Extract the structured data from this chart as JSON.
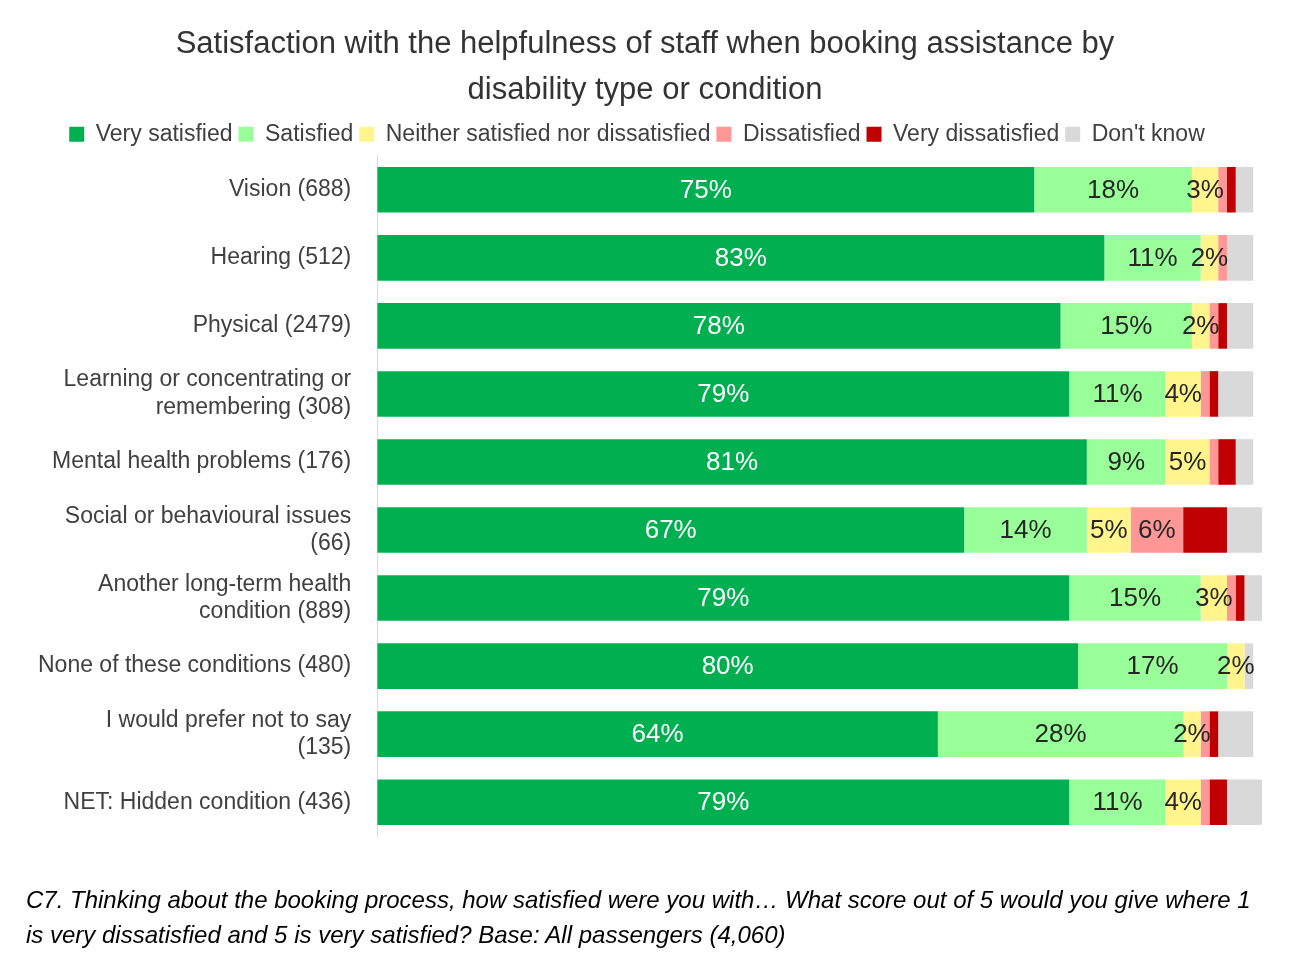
{
  "chart_data": {
    "type": "bar",
    "orientation": "horizontal",
    "stacked": true,
    "title": "Satisfaction with the helpfulness of staff when booking assistance by disability type or condition",
    "categories": [
      "Vision (688)",
      "Hearing (512)",
      "Physical (2479)",
      "Learning or concentrating or remembering (308)",
      "Mental health problems (176)",
      "Social or behavioural issues (66)",
      "Another long-term health condition (889)",
      "None of these conditions (480)",
      "I would prefer not to say (135)",
      "NET: Hidden condition (436)"
    ],
    "series": [
      {
        "name": "Very satisfied",
        "color": "#00b050",
        "values": [
          75,
          83,
          78,
          79,
          81,
          67,
          79,
          80,
          64,
          79
        ],
        "value_labels": [
          "75%",
          "83%",
          "78%",
          "79%",
          "81%",
          "67%",
          "79%",
          "80%",
          "64%",
          "79%"
        ]
      },
      {
        "name": "Satisfied",
        "color": "#99ff99",
        "values": [
          18,
          11,
          15,
          11,
          9,
          14,
          15,
          17,
          28,
          11
        ],
        "value_labels": [
          "18%",
          "11%",
          "15%",
          "11%",
          "9%",
          "14%",
          "15%",
          "17%",
          "28%",
          "11%"
        ]
      },
      {
        "name": "Neither satisfied nor dissatisfied",
        "color": "#fff58c",
        "values": [
          3,
          2,
          2,
          4,
          5,
          5,
          3,
          2,
          2,
          4
        ],
        "value_labels": [
          "3%",
          "2%",
          "2%",
          "4%",
          "5%",
          "5%",
          "3%",
          "2%",
          "2%",
          "4%"
        ]
      },
      {
        "name": "Dissatisfied",
        "color": "#ff9797",
        "values": [
          1,
          1,
          1,
          1,
          1,
          6,
          1,
          0,
          1,
          1
        ],
        "value_labels": [
          null,
          null,
          null,
          null,
          null,
          "6%",
          null,
          null,
          null,
          null
        ]
      },
      {
        "name": "Very dissatisfied",
        "color": "#c00000",
        "values": [
          1,
          0,
          1,
          1,
          2,
          5,
          1,
          0,
          1,
          2
        ]
      },
      {
        "name": "Don't know",
        "color": "#d9d9d9",
        "values": [
          2,
          3,
          3,
          4,
          2,
          4,
          2,
          1,
          4,
          4
        ]
      }
    ],
    "legend": "top",
    "grid": false,
    "annotations": [
      "C7. Thinking about the booking process, how satisfied were you with… What score out of 5 would you give where 1 is very dissatisfied and 5 is very satisfied? Base: All passengers (4,060)"
    ]
  }
}
